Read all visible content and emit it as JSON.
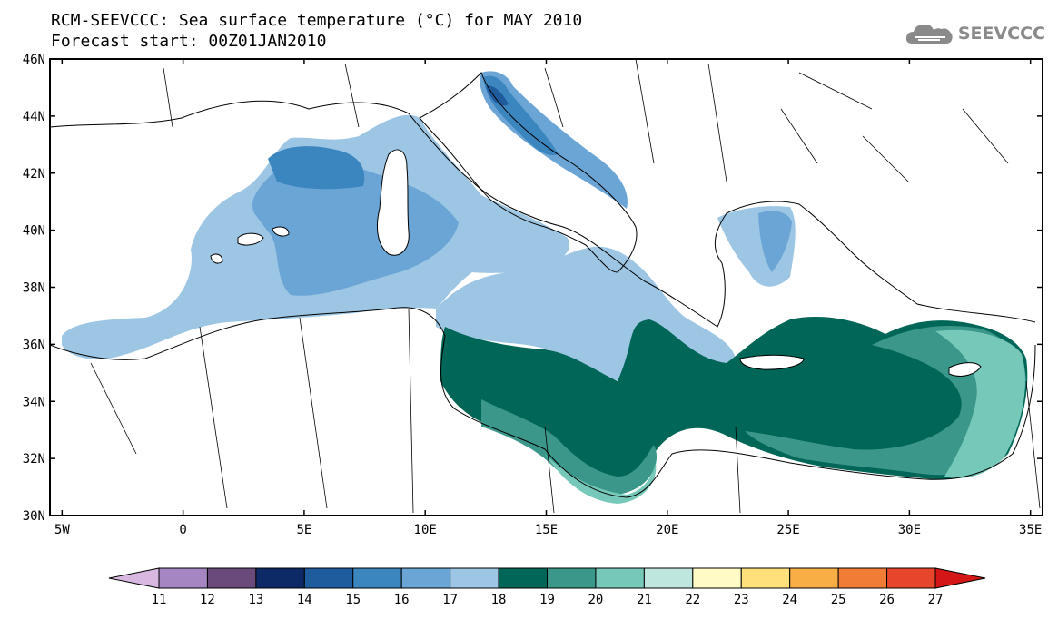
{
  "title_line1": "RCM-SEEVCCC: Sea surface temperature (°C) for MAY 2010",
  "title_line2": "Forecast start: 00Z01JAN2010",
  "logo_text": "SEEVCCC",
  "map": {
    "lon_range": [
      -5.5,
      35.5
    ],
    "lat_range": [
      30,
      46
    ],
    "lon_ticks": [
      "5W",
      "0",
      "5E",
      "10E",
      "15E",
      "20E",
      "25E",
      "30E",
      "35E"
    ],
    "lat_ticks": [
      "30N",
      "32N",
      "34N",
      "36N",
      "38N",
      "40N",
      "42N",
      "44N",
      "46N"
    ]
  },
  "colorbar": {
    "labels": [
      "11",
      "12",
      "13",
      "14",
      "15",
      "16",
      "17",
      "18",
      "19",
      "20",
      "21",
      "22",
      "23",
      "24",
      "25",
      "26",
      "27"
    ],
    "colors": [
      "#d8b8e0",
      "#a585c2",
      "#6a4a7a",
      "#0e2a66",
      "#1f5c9e",
      "#3c86c0",
      "#6aa5d6",
      "#9cc6e3",
      "#006657",
      "#3a978a",
      "#76c8b8",
      "#bfe6de",
      "#fffac6",
      "#ffe07a",
      "#f8ae45",
      "#f07c35",
      "#e8462a",
      "#d41616"
    ]
  },
  "icons": {
    "logo": "cloud-logo-icon"
  }
}
